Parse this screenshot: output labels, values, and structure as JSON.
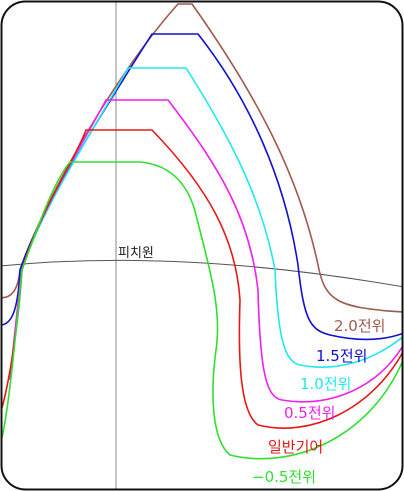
{
  "pitch_circle_label": "피치원",
  "curves": [
    {
      "label": "2.0전위",
      "color": "#a05a4e"
    },
    {
      "label": "1.5전위",
      "color": "#1010d0"
    },
    {
      "label": "1.0전위",
      "color": "#20e8f0"
    },
    {
      "label": "0.5전위",
      "color": "#f020f0"
    },
    {
      "label": "일반기어",
      "color": "#e81818"
    },
    {
      "label": "−0.5전위",
      "color": "#30e030"
    }
  ]
}
